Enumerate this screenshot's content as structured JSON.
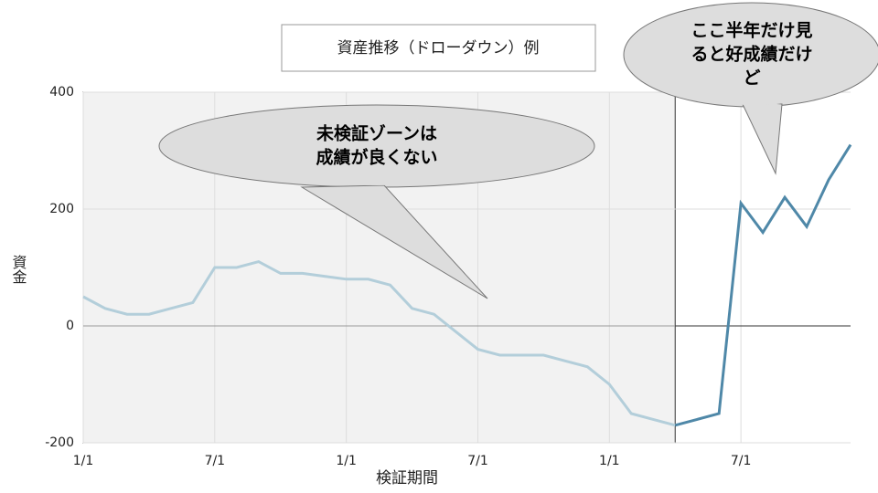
{
  "chart_data": {
    "type": "line",
    "title": "資産推移（ドローダウン）例",
    "y_label": "資金",
    "x_label": "検証期間",
    "annotations": [
      {
        "lines": [
          "未検証ゾーンは",
          "成績が良くない"
        ]
      },
      {
        "lines": [
          "ここ半年だけ見",
          "ると好成績だけ",
          "ど"
        ]
      }
    ],
    "categories": [
      "1/1",
      null,
      null,
      null,
      null,
      null,
      "7/1",
      null,
      null,
      null,
      null,
      null,
      "1/1",
      null,
      null,
      null,
      null,
      null,
      "7/1",
      null,
      null,
      null,
      null,
      null,
      "1/1",
      null,
      null,
      null,
      null,
      null,
      "7/1",
      null,
      null,
      null,
      null,
      null
    ],
    "series": [
      {
        "color": "#b3ceda",
        "values": [
          50,
          30,
          20,
          20,
          30,
          40,
          100,
          100,
          110,
          90,
          90,
          85,
          80,
          80,
          70,
          30,
          20,
          -10,
          -40,
          -50,
          -50,
          -50,
          -60,
          -70,
          -100,
          -150,
          -160,
          -170,
          null,
          null,
          null,
          null,
          null,
          null,
          null,
          null
        ]
      },
      {
        "color": "#4f88a8",
        "values": [
          null,
          null,
          null,
          null,
          null,
          null,
          null,
          null,
          null,
          null,
          null,
          null,
          null,
          null,
          null,
          null,
          null,
          null,
          null,
          null,
          null,
          null,
          null,
          null,
          null,
          null,
          null,
          -170,
          -160,
          -150,
          210,
          160,
          220,
          170,
          250,
          310
        ]
      }
    ],
    "ylim": [
      -200,
      400
    ],
    "yticks": [
      -200,
      0,
      200,
      400
    ],
    "grid": true
  }
}
